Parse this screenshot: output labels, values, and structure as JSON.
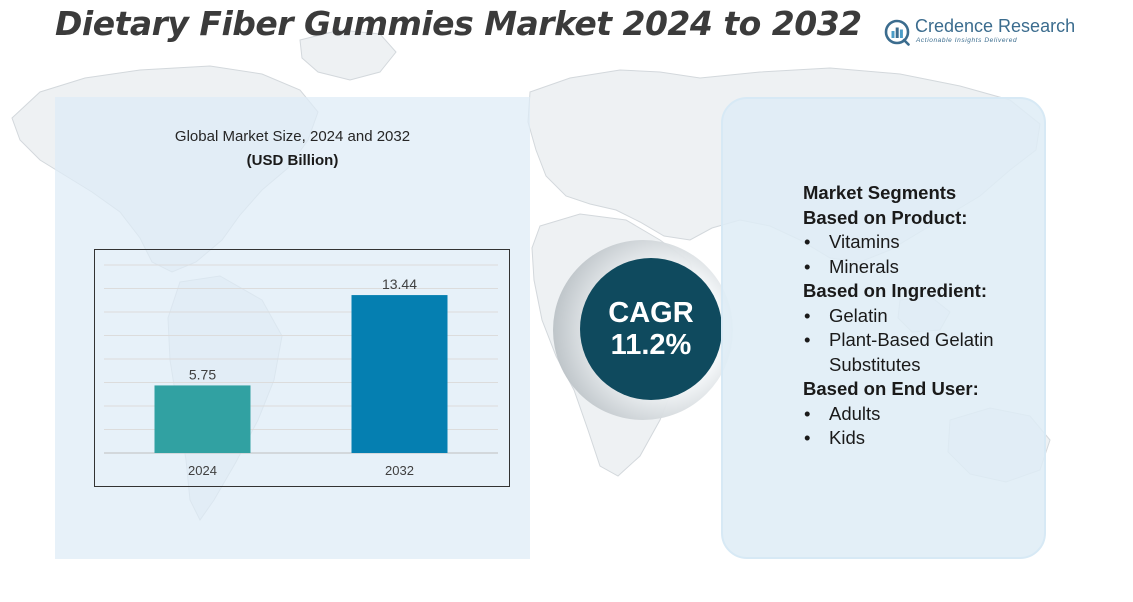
{
  "title": "Dietary Fiber Gummies Market 2024 to 2032",
  "logo": {
    "name": "Credence Research",
    "tagline": "Actionable Insights Delivered",
    "icon": "bar-chart-magnifier-icon",
    "color": "#3b6c8e"
  },
  "chart_data": {
    "type": "bar",
    "title": "Global Market Size, 2024 and 2032",
    "unit": "(USD Billion)",
    "categories": [
      "2024",
      "2032"
    ],
    "values": [
      5.75,
      13.44
    ],
    "value_labels": [
      "5.75",
      "13.44"
    ],
    "colors": [
      "#31a1a2",
      "#057fb1"
    ],
    "ylim": [
      0,
      16
    ],
    "grid": true,
    "legend": "none"
  },
  "cagr": {
    "label": "CAGR",
    "value": "11.2%"
  },
  "segments": {
    "heading": "Market Segments",
    "groups": [
      {
        "title": "Based on Product:",
        "items": [
          "Vitamins",
          "Minerals"
        ]
      },
      {
        "title": "Based on Ingredient:",
        "items": [
          "Gelatin",
          "Plant-Based Gelatin Substitutes"
        ]
      },
      {
        "title": "Based on End User:",
        "items": [
          "Adults",
          "Kids"
        ]
      }
    ]
  },
  "colors": {
    "panel": "#deecf6",
    "cagr_circle": "#0f4a5e",
    "map": "#d9dde1"
  }
}
